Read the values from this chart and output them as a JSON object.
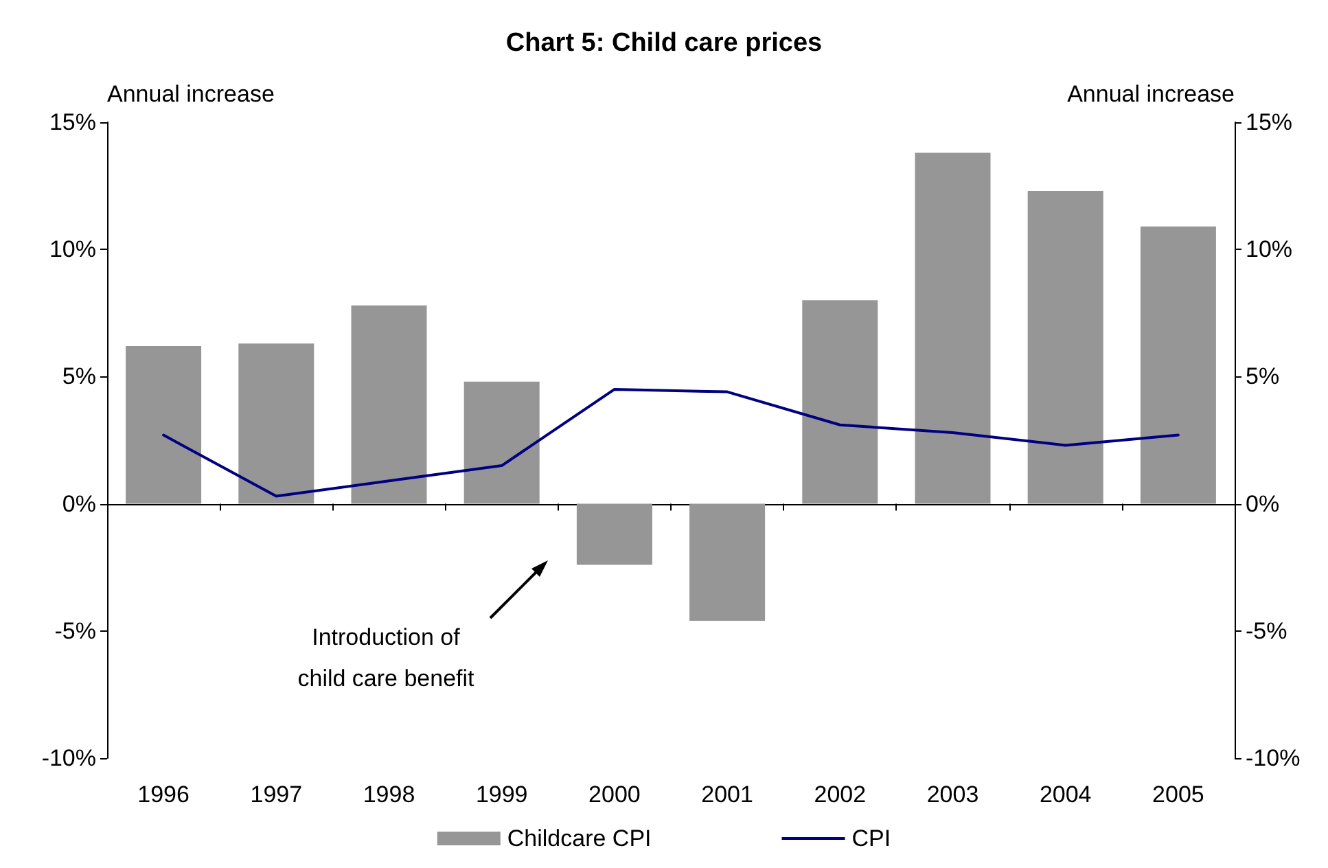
{
  "chart_data": {
    "type": "bar",
    "title": "Chart 5: Child care prices",
    "ylabel": "Annual increase",
    "y2label": "Annual increase",
    "categories": [
      "1996",
      "1997",
      "1998",
      "1999",
      "2000",
      "2001",
      "2002",
      "2003",
      "2004",
      "2005"
    ],
    "series": [
      {
        "name": "Childcare CPI",
        "color": "#969696",
        "values": [
          6.2,
          6.3,
          7.8,
          4.8,
          -2.4,
          -4.6,
          8.0,
          13.8,
          12.3,
          10.9
        ]
      },
      {
        "name": "CPI",
        "type": "line",
        "color": "#000080",
        "values": [
          2.7,
          0.3,
          0.9,
          1.5,
          4.5,
          4.4,
          3.1,
          2.8,
          2.3,
          2.7
        ]
      }
    ],
    "ylim": [
      -10,
      15
    ],
    "yticks": [
      {
        "value": -10,
        "label": "-10%"
      },
      {
        "value": -5,
        "label": "-5%"
      },
      {
        "value": 0,
        "label": "0%"
      },
      {
        "value": 5,
        "label": "5%"
      },
      {
        "value": 10,
        "label": "10%"
      },
      {
        "value": 15,
        "label": "15%"
      }
    ],
    "y2lim": [
      -10,
      15
    ],
    "y2ticks": [
      {
        "value": -10,
        "label": "-10%"
      },
      {
        "value": -5,
        "label": "-5%"
      },
      {
        "value": 0,
        "label": "0%"
      },
      {
        "value": 5,
        "label": "5%"
      },
      {
        "value": 10,
        "label": "10%"
      },
      {
        "value": 15,
        "label": "15%"
      }
    ],
    "legend": "bottom",
    "marker": "none",
    "annotations": [
      "Introduction of\nchild care benefit"
    ]
  }
}
